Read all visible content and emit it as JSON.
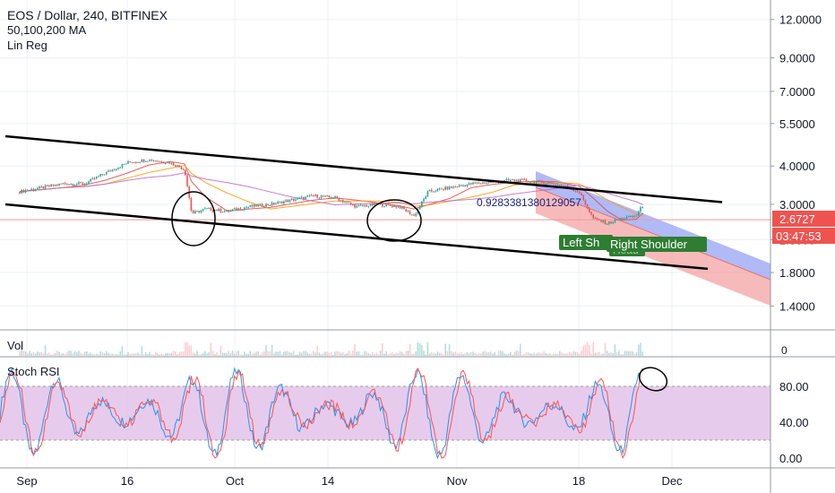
{
  "header": {
    "symbol_line": "EOS / Dollar, 240, BITFINEX",
    "ma_line": "50,100,200 MA",
    "linreg_line": "Lin Reg"
  },
  "chart_data": [
    {
      "type": "line",
      "panel": "price",
      "title": "EOS / Dollar, 240, BITFINEX",
      "scale": "log",
      "y_ticks": [
        1.4,
        1.8,
        2.3,
        3.0,
        4.0,
        5.5,
        7.0,
        9.0,
        12.0
      ],
      "y_tick_labels": [
        "1.4000",
        "1.8000",
        "2.3000",
        "3.0000",
        "4.0000",
        "5.5000",
        "7.0000",
        "9.0000",
        "12.0000"
      ],
      "x_tick_labels": [
        "Sep",
        "16",
        "Oct",
        "14",
        "Nov",
        "18",
        "Dec"
      ],
      "last_price": "2.6727",
      "countdown": "03:47:53",
      "series": [
        {
          "name": "Price",
          "color": "#26a69a",
          "x": [
            "Sep 1",
            "Sep 4",
            "Sep 7",
            "Sep 10",
            "Sep 13",
            "Sep 16",
            "Sep 19",
            "Sep 22",
            "Sep 24",
            "Sep 25",
            "Sep 27",
            "Sep 30",
            "Oct 3",
            "Oct 6",
            "Oct 9",
            "Oct 12",
            "Oct 15",
            "Oct 18",
            "Oct 21",
            "Oct 24",
            "Oct 26",
            "Oct 28",
            "Oct 31",
            "Nov 3",
            "Nov 6",
            "Nov 9",
            "Nov 12",
            "Nov 15",
            "Nov 18",
            "Nov 20",
            "Nov 22",
            "Nov 24",
            "Nov 26",
            "Nov 27"
          ],
          "values": [
            3.3,
            3.4,
            3.5,
            3.5,
            3.8,
            4.1,
            4.2,
            4.1,
            3.9,
            2.8,
            2.9,
            2.85,
            2.95,
            3.0,
            3.1,
            3.2,
            3.15,
            2.95,
            3.0,
            2.95,
            2.75,
            3.3,
            3.4,
            3.5,
            3.55,
            3.6,
            3.55,
            3.5,
            3.3,
            2.7,
            2.6,
            2.7,
            2.75,
            3.0
          ]
        },
        {
          "name": "MA 50",
          "color": "#e04646",
          "values": []
        },
        {
          "name": "MA 100",
          "color": "#ff9800",
          "values": []
        },
        {
          "name": "MA 200",
          "color": "#ba68c8",
          "values": []
        }
      ],
      "annotations": {
        "channel_upper": {
          "from": [
            "Aug 30",
            5.0
          ],
          "to": [
            "Dec 8",
            3.05
          ]
        },
        "channel_lower": {
          "from": [
            "Aug 30",
            3.0
          ],
          "to": [
            "Dec 6",
            1.85
          ]
        },
        "linreg_value": "0.9283381380129057",
        "labels": [
          "Left Sh",
          "Head",
          "Right Shoulder"
        ]
      }
    },
    {
      "type": "bar",
      "panel": "volume",
      "title": "Vol"
    },
    {
      "type": "line",
      "panel": "stoch_rsi",
      "title": "Stoch RSI",
      "y_ticks": [
        0,
        40,
        80,
        100
      ],
      "y_tick_labels": [
        "0.00",
        "40.00",
        "80.00",
        ""
      ],
      "band": [
        20,
        80
      ],
      "series": [
        {
          "name": "K",
          "color": "#2196f3"
        },
        {
          "name": "D",
          "color": "#ff5252"
        }
      ]
    }
  ],
  "colors": {
    "grid": "#eef0f3",
    "axis_line": "#9598a1",
    "text": "#131722",
    "up": "#26a69a",
    "down": "#ef5350",
    "rsi_band": "#e1bee7",
    "price_tag": "#ef5350"
  }
}
